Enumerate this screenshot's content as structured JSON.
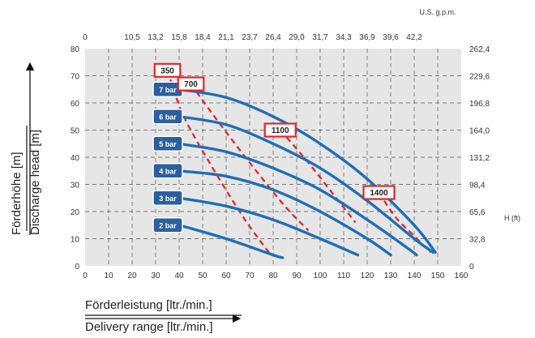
{
  "chart_data": {
    "type": "line",
    "x_axis_bottom": {
      "label_de": "Förderleistung [ltr./min.]",
      "label_en": "Delivery range [ltr./min.]",
      "ticks": [
        "0",
        "10",
        "20",
        "30",
        "40",
        "50",
        "60",
        "70",
        "80",
        "90",
        "100",
        "110",
        "120",
        "130",
        "140",
        "150",
        "160"
      ],
      "range": [
        0,
        160
      ]
    },
    "x_axis_top": {
      "label": "U.S. g.p.m.",
      "ticks": [
        "0",
        "10,5",
        "13,2",
        "15,8",
        "18,4",
        "21,1",
        "23,7",
        "26,4",
        "29,0",
        "31,7",
        "34,3",
        "36,9",
        "39,6",
        "42,2"
      ]
    },
    "y_axis_left": {
      "label_de": "Förderhöhe [m]",
      "label_en": "Discharge head [m]",
      "ticks": [
        "0",
        "10",
        "20",
        "30",
        "40",
        "50",
        "60",
        "70",
        "80"
      ],
      "range": [
        0,
        80
      ]
    },
    "y_axis_right": {
      "label": "H (ft)",
      "ticks": [
        "0",
        "32,8",
        "65,6",
        "98,4",
        "131,2",
        "164,0",
        "196,8",
        "229,6",
        "262,4"
      ]
    },
    "grid": true,
    "series": [
      {
        "name": "7 bar",
        "x": [
          40,
          60,
          80,
          100,
          120,
          140,
          149
        ],
        "y": [
          65,
          62,
          55,
          45,
          32,
          15,
          5
        ]
      },
      {
        "name": "6 bar",
        "x": [
          40,
          60,
          80,
          100,
          120,
          140,
          148
        ],
        "y": [
          55,
          52,
          45,
          36,
          24,
          10,
          5
        ]
      },
      {
        "name": "5 bar",
        "x": [
          40,
          60,
          80,
          100,
          120,
          138,
          141
        ],
        "y": [
          45,
          42,
          36,
          28,
          17,
          6,
          4
        ]
      },
      {
        "name": "4 bar",
        "x": [
          40,
          60,
          80,
          100,
          120,
          130
        ],
        "y": [
          35,
          33,
          28,
          20,
          10,
          4
        ]
      },
      {
        "name": "3 bar",
        "x": [
          40,
          60,
          80,
          100,
          116
        ],
        "y": [
          25,
          22,
          17,
          10,
          4
        ]
      },
      {
        "name": "2 bar",
        "x": [
          40,
          60,
          80,
          84
        ],
        "y": [
          15,
          10,
          4,
          3
        ]
      }
    ],
    "rpm_lines": [
      {
        "label": "350",
        "x": [
          35,
          42,
          55,
          68,
          79
        ],
        "y": [
          72,
          55,
          35,
          17,
          4
        ]
      },
      {
        "label": "700",
        "x": [
          45,
          55,
          70,
          85,
          95
        ],
        "y": [
          67,
          55,
          38,
          22,
          13
        ]
      },
      {
        "label": "1100",
        "x": [
          83,
          95,
          105,
          115
        ],
        "y": [
          50,
          38,
          27,
          16
        ]
      },
      {
        "label": "1400",
        "x": [
          125,
          132,
          140,
          147
        ],
        "y": [
          27,
          18,
          11,
          5
        ]
      }
    ]
  },
  "colors": {
    "curve": "#1f6fb5",
    "rpm_line": "#e3262b",
    "badge_fill": "#2b5f9e",
    "plot_bg": "#e6e6e6",
    "grid": "#555555"
  }
}
